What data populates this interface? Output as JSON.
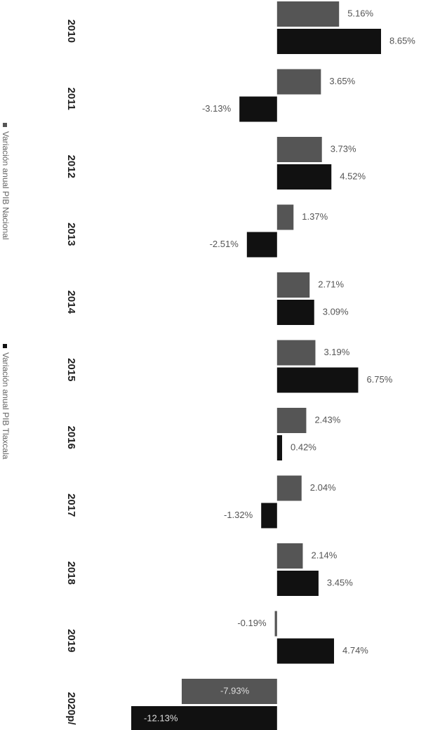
{
  "chart_data": {
    "type": "bar",
    "orientation": "horizontal",
    "categories": [
      "2010",
      "2011",
      "2012",
      "2013",
      "2014",
      "2015",
      "2016",
      "2017",
      "2018",
      "2019",
      "2020p/"
    ],
    "series": [
      {
        "name": "Variación anual PIB Nacional",
        "color": "#555555",
        "values": [
          5.16,
          3.65,
          3.73,
          1.37,
          2.71,
          3.19,
          2.43,
          2.04,
          2.14,
          -0.19,
          -7.93
        ],
        "value_labels": [
          "5.16%",
          "3.65%",
          "3.73%",
          "1.37%",
          "2.71%",
          "3.19%",
          "2.43%",
          "2.04%",
          "2.14%",
          "-0.19%",
          "-7.93%"
        ]
      },
      {
        "name": "Variación anual PIB Tlaxcala",
        "color": "#111111",
        "values": [
          8.65,
          -3.13,
          4.52,
          -2.51,
          3.09,
          6.75,
          0.42,
          -1.32,
          3.45,
          4.74,
          -12.13
        ],
        "value_labels": [
          "8.65%",
          "-3.13%",
          "4.52%",
          "-2.51%",
          "3.09%",
          "6.75%",
          "0.42%",
          "-1.32%",
          "3.45%",
          "4.74%",
          "-12.13%"
        ]
      }
    ]
  }
}
